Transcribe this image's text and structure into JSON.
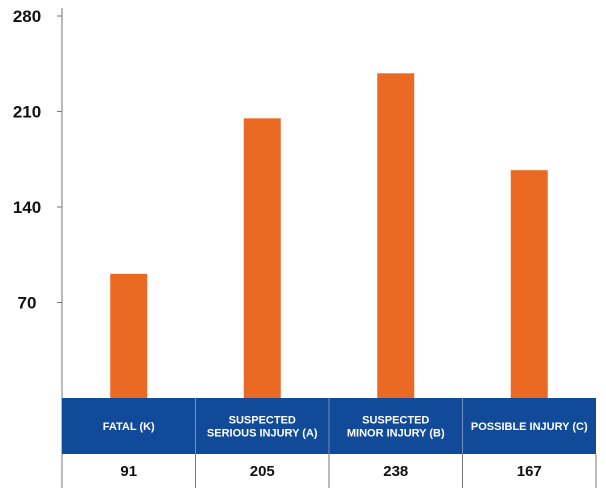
{
  "chart_data": {
    "type": "bar",
    "categories": [
      [
        "FATAL (K)"
      ],
      [
        "SUSPECTED",
        "SERIOUS INJURY (A)"
      ],
      [
        "SUSPECTED",
        "MINOR INJURY (B)"
      ],
      [
        "POSSIBLE INJURY (C)"
      ]
    ],
    "values": [
      91,
      205,
      238,
      167
    ],
    "value_labels": [
      "91",
      "205",
      "238",
      "167"
    ],
    "ylim": [
      0,
      280
    ],
    "yticks": [
      70,
      140,
      210,
      280
    ],
    "ytick_labels": [
      "70",
      "140",
      "210",
      "280"
    ],
    "title": "",
    "xlabel": "",
    "ylabel": "",
    "grid": false,
    "legend": "none",
    "colors": {
      "bar": "#EB6A23",
      "header_band": "#124A9A",
      "axis": "#777777",
      "header_divider": "#6F8DBF"
    }
  }
}
